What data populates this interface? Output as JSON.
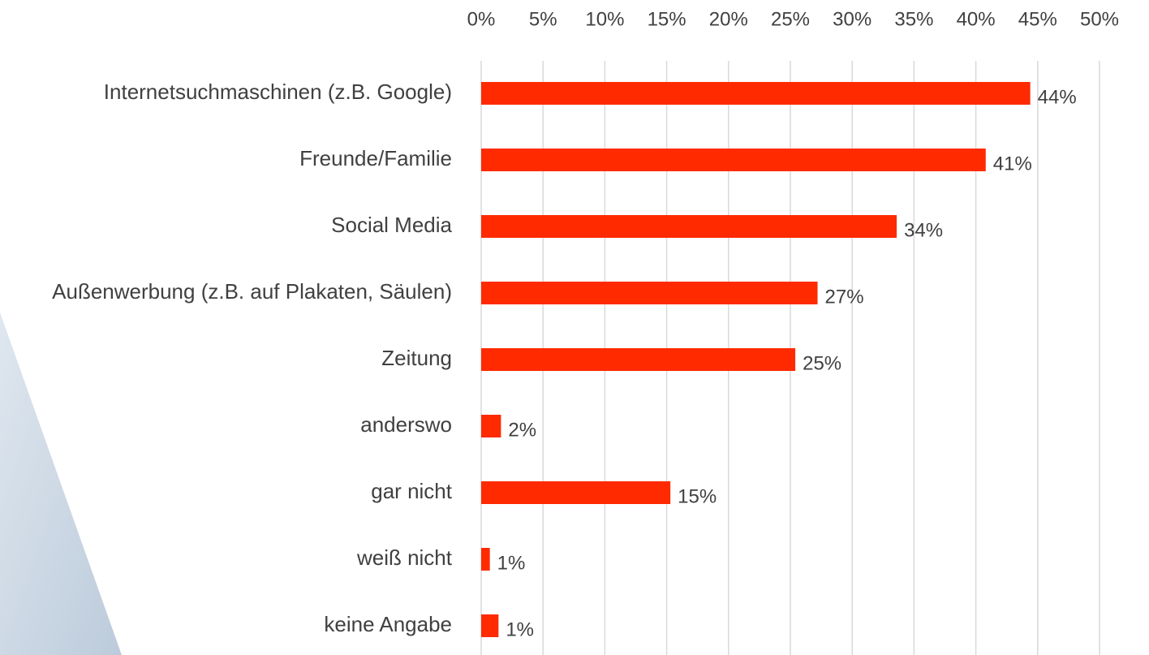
{
  "chart_data": {
    "type": "barh",
    "categories": [
      "Internetsuchmaschinen (z.B. Google)",
      "Freunde/Familie",
      "Social Media",
      "Außenwerbung (z.B. auf Plakaten, Säulen)",
      "Zeitung",
      "anderswo",
      "gar nicht",
      "weiß nicht",
      "keine Angabe"
    ],
    "values": [
      44.4,
      40.8,
      33.6,
      27.2,
      25.4,
      1.6,
      15.3,
      0.7,
      1.4
    ],
    "value_labels": [
      "44%",
      "41%",
      "34%",
      "27%",
      "25%",
      "2%",
      "15%",
      "1%",
      "1%"
    ],
    "color": "#ff2a00",
    "xlim": [
      0,
      50
    ],
    "xticks": [
      {
        "value": 0,
        "label": "0%"
      },
      {
        "value": 5,
        "label": "5%"
      },
      {
        "value": 10,
        "label": "10%"
      },
      {
        "value": 15,
        "label": "15%"
      },
      {
        "value": 20,
        "label": "20%"
      },
      {
        "value": 25,
        "label": "25%"
      },
      {
        "value": 30,
        "label": "30%"
      },
      {
        "value": 35,
        "label": "35%"
      },
      {
        "value": 40,
        "label": "40%"
      },
      {
        "value": 45,
        "label": "45%"
      },
      {
        "value": 50,
        "label": "50%"
      }
    ],
    "grid": true
  }
}
